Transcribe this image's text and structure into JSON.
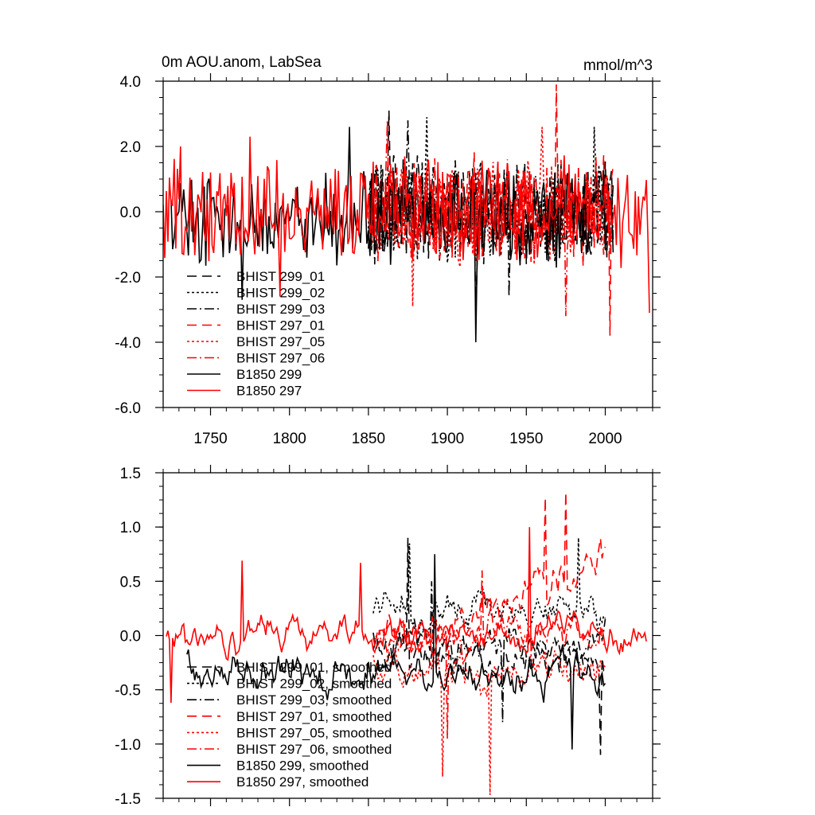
{
  "chart_data": [
    {
      "type": "line",
      "title_left": "0m AOU.anom, LabSea",
      "title_right": "mmol/m^3",
      "xlabel": "",
      "ylabel": "",
      "xlim": [
        1720,
        2030
      ],
      "ylim": [
        -6.0,
        4.0
      ],
      "x_ticks": [
        1750,
        1800,
        1850,
        1900,
        1950,
        2000
      ],
      "x_tick_labels": [
        "1750",
        "1800",
        "1850",
        "1900",
        "1950",
        "2000"
      ],
      "y_ticks": [
        -6.0,
        -4.0,
        -2.0,
        0.0,
        2.0,
        4.0
      ],
      "y_tick_labels": [
        "-6.0",
        "-4.0",
        "-2.0",
        "0.0",
        "2.0",
        "4.0"
      ],
      "legend_position": "bottom-left",
      "series": [
        {
          "name": "BHIST 299_01",
          "color": "#000000",
          "style": "dash",
          "x_start": 1850,
          "x_end": 2005,
          "amplitude": 1.3,
          "bias": 0.0,
          "seed": 11,
          "extremes": [
            [
              1863,
              3.1
            ],
            [
              1918,
              -3.2
            ]
          ]
        },
        {
          "name": "BHIST 299_02",
          "color": "#000000",
          "style": "dot",
          "x_start": 1850,
          "x_end": 2005,
          "amplitude": 1.3,
          "bias": 0.0,
          "seed": 12,
          "extremes": [
            [
              1887,
              2.9
            ],
            [
              1993,
              2.6
            ]
          ]
        },
        {
          "name": "BHIST 299_03",
          "color": "#000000",
          "style": "dashdot",
          "x_start": 1850,
          "x_end": 2005,
          "amplitude": 1.3,
          "bias": 0.0,
          "seed": 13,
          "extremes": [
            [
              1875,
              2.8
            ],
            [
              1939,
              -2.6
            ]
          ]
        },
        {
          "name": "BHIST 297_01",
          "color": "#ff0000",
          "style": "dash",
          "x_start": 1850,
          "x_end": 2005,
          "amplitude": 1.3,
          "bias": 0.1,
          "seed": 14,
          "extremes": [
            [
              1969,
              3.9
            ],
            [
              2003,
              -3.8
            ]
          ]
        },
        {
          "name": "BHIST 297_05",
          "color": "#ff0000",
          "style": "dot",
          "x_start": 1850,
          "x_end": 2005,
          "amplitude": 1.3,
          "bias": 0.0,
          "seed": 15,
          "extremes": [
            [
              1878,
              -2.9
            ],
            [
              1960,
              2.6
            ]
          ]
        },
        {
          "name": "BHIST 297_06",
          "color": "#ff0000",
          "style": "dashdot",
          "x_start": 1850,
          "x_end": 2005,
          "amplitude": 1.3,
          "bias": 0.0,
          "seed": 16,
          "extremes": [
            [
              1862,
              2.8
            ],
            [
              1975,
              -3.2
            ]
          ]
        },
        {
          "name": "B1850 299",
          "color": "#000000",
          "style": "solid",
          "x_start": 1725,
          "x_end": 2005,
          "amplitude": 1.2,
          "bias": -0.2,
          "seed": 17,
          "extremes": [
            [
              1838,
              2.6
            ],
            [
              1918,
              -4.0
            ],
            [
              1770,
              -2.7
            ]
          ]
        },
        {
          "name": "B1850 297",
          "color": "#ff0000",
          "style": "solid",
          "x_start": 1720,
          "x_end": 2028,
          "amplitude": 1.3,
          "bias": 0.0,
          "seed": 18,
          "extremes": [
            [
              1731,
              2.0
            ],
            [
              1775,
              2.3
            ],
            [
              1794,
              -2.6
            ],
            [
              2028,
              -3.1
            ]
          ]
        }
      ]
    },
    {
      "type": "line",
      "title_left": "",
      "title_right": "",
      "xlabel": "",
      "ylabel": "",
      "xlim": [
        1720,
        2030
      ],
      "ylim": [
        -1.5,
        1.5
      ],
      "x_ticks": [
        1750,
        1800,
        1850,
        1900,
        1950,
        2000
      ],
      "x_tick_labels": [],
      "y_ticks": [
        -1.5,
        -1.0,
        -0.5,
        0.0,
        0.5,
        1.0,
        1.5
      ],
      "y_tick_labels": [
        "-1.5",
        "-1.0",
        "-0.5",
        "0.0",
        "0.5",
        "1.0",
        "1.5"
      ],
      "legend_position": "bottom-left",
      "series": [
        {
          "name": "BHIST 299_01, smoothed",
          "color": "#000000",
          "style": "dash",
          "x_start": 1853,
          "x_end": 2000,
          "amplitude": 0.35,
          "bias": -0.2,
          "trend": 0.0,
          "seed": 21,
          "extremes": [
            [
              1875,
              0.9
            ],
            [
              1997,
              -1.1
            ]
          ]
        },
        {
          "name": "BHIST 299_02, smoothed",
          "color": "#000000",
          "style": "dot",
          "x_start": 1853,
          "x_end": 2000,
          "amplitude": 0.35,
          "bias": 0.2,
          "trend": 0.0,
          "seed": 22,
          "extremes": [
            [
              1876,
              0.85
            ],
            [
              1983,
              0.9
            ]
          ]
        },
        {
          "name": "BHIST 299_03, smoothed",
          "color": "#000000",
          "style": "dashdot",
          "x_start": 1853,
          "x_end": 2000,
          "amplitude": 0.35,
          "bias": -0.1,
          "trend": 0.0,
          "seed": 23,
          "extremes": [
            [
              1890,
              0.5
            ],
            [
              1935,
              -0.8
            ]
          ]
        },
        {
          "name": "BHIST 297_01, smoothed",
          "color": "#ff0000",
          "style": "dash",
          "x_start": 1853,
          "x_end": 2000,
          "amplitude": 0.4,
          "bias": 0.0,
          "trend": 0.8,
          "seed": 24,
          "extremes": [
            [
              1962,
              1.27
            ],
            [
              1975,
              1.32
            ]
          ]
        },
        {
          "name": "BHIST 297_05, smoothed",
          "color": "#ff0000",
          "style": "dot",
          "x_start": 1853,
          "x_end": 2000,
          "amplitude": 0.4,
          "bias": -0.3,
          "trend": 0.0,
          "seed": 25,
          "extremes": [
            [
              1897,
              -1.3
            ],
            [
              1927,
              -1.47
            ]
          ]
        },
        {
          "name": "BHIST 297_06, smoothed",
          "color": "#ff0000",
          "style": "dashdot",
          "x_start": 1853,
          "x_end": 2000,
          "amplitude": 0.35,
          "bias": 0.0,
          "trend": 0.0,
          "seed": 26,
          "extremes": [
            [
              1922,
              0.6
            ],
            [
              1900,
              -0.95
            ]
          ]
        },
        {
          "name": "B1850 299, smoothed",
          "color": "#000000",
          "style": "solid",
          "x_start": 1735,
          "x_end": 2000,
          "amplitude": 0.35,
          "bias": -0.35,
          "trend": 0.0,
          "seed": 27,
          "extremes": [
            [
              1892,
              0.75
            ],
            [
              1979,
              -1.05
            ]
          ]
        },
        {
          "name": "B1850 297, smoothed",
          "color": "#ff0000",
          "style": "solid",
          "x_start": 1722,
          "x_end": 2026,
          "amplitude": 0.3,
          "bias": 0.0,
          "trend": 0.0,
          "seed": 28,
          "extremes": [
            [
              1770,
              0.69
            ],
            [
              1845,
              0.67
            ],
            [
              1952,
              1.0
            ],
            [
              1725,
              -0.62
            ]
          ]
        }
      ]
    }
  ]
}
